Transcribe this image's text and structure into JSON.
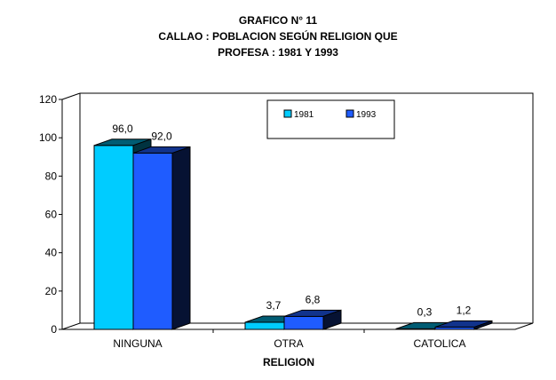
{
  "chart_data": {
    "type": "bar",
    "title_lines": [
      "GRAFICO N° 11",
      "CALLAO : POBLACION SEGÚN RELIGION QUE",
      "PROFESA : 1981 Y 1993"
    ],
    "xlabel": "RELIGION",
    "ylabel": "",
    "categories": [
      "NINGUNA",
      "OTRA",
      "CATOLICA"
    ],
    "series": [
      {
        "name": "1981",
        "values": [
          96.0,
          3.7,
          0.3
        ],
        "labels": [
          "96,0",
          "3,7",
          "0,3"
        ],
        "color": "#00ccff"
      },
      {
        "name": "1993",
        "values": [
          92.0,
          6.8,
          1.2
        ],
        "labels": [
          "92,0",
          "6,8",
          "1,2"
        ],
        "color": "#1f5cff"
      }
    ],
    "ylim": [
      0,
      120
    ],
    "yticks": [
      0,
      20,
      40,
      60,
      80,
      100,
      120
    ],
    "grid": false,
    "legend_position": "top-right",
    "style": "3d-clustered-column"
  }
}
